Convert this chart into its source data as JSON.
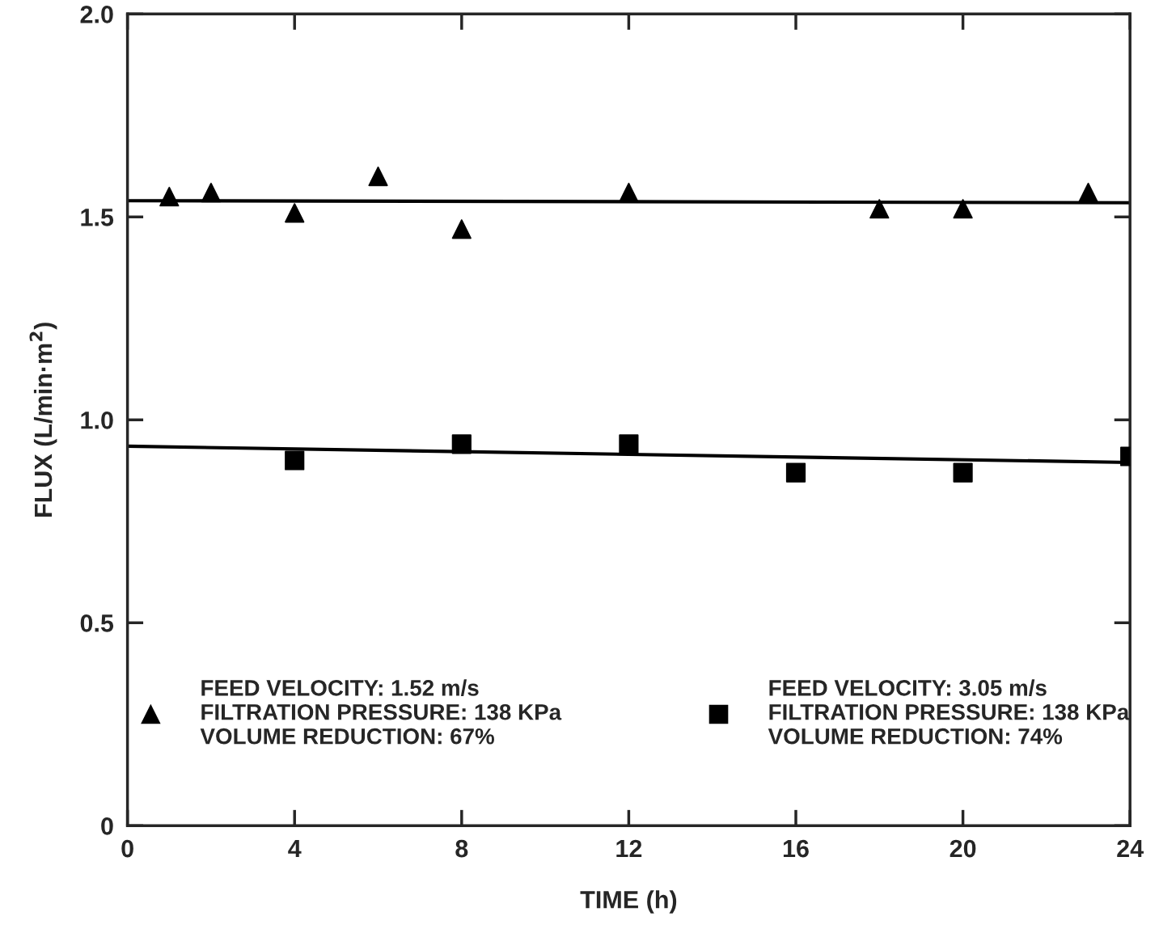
{
  "chart_data": {
    "type": "scatter",
    "xlabel": "TIME (h)",
    "ylabel": "FLUX (L/min·m$^{2}$)",
    "xlim": [
      0,
      24
    ],
    "ylim": [
      0,
      2.0
    ],
    "xticks": [
      0,
      4,
      8,
      12,
      16,
      20,
      24
    ],
    "yticks": [
      0,
      0.5,
      {
        "value": 1.0,
        "label": "1.0"
      },
      1.5,
      {
        "value": 2.0,
        "label": "2.0"
      }
    ],
    "grid": false,
    "legend": "bottom",
    "series": [
      {
        "name": "FEED VELOCITY: 1.52 m/s\nFILTRATION PRESSURE: 138 KPa\nVOLUME REDUCTION: 67%",
        "color": "#000000",
        "marker": "triangle",
        "x": [
          1,
          2,
          4,
          6,
          8,
          12,
          18,
          20,
          23
        ],
        "values": [
          1.55,
          1.56,
          1.51,
          1.6,
          1.47,
          1.56,
          1.52,
          1.52,
          1.56
        ]
      },
      {
        "name": "FEED VELOCITY: 3.05 m/s\nFILTRATION PRESSURE: 138 KPa\nVOLUME REDUCTION: 74%",
        "color": "#000000",
        "marker": "square",
        "x": [
          4,
          8,
          12,
          16,
          20,
          24
        ],
        "values": [
          0.9,
          0.94,
          0.94,
          0.87,
          0.87,
          0.91
        ]
      },
      {
        "type": "line",
        "color": "#000000",
        "marker": "none",
        "line_style": "solid",
        "x": [
          0,
          24
        ],
        "values": [
          1.54,
          1.535
        ]
      },
      {
        "type": "line",
        "color": "#000000",
        "marker": "none",
        "line_style": "solid",
        "x": [
          0,
          24
        ],
        "values": [
          0.935,
          0.895
        ]
      }
    ]
  }
}
